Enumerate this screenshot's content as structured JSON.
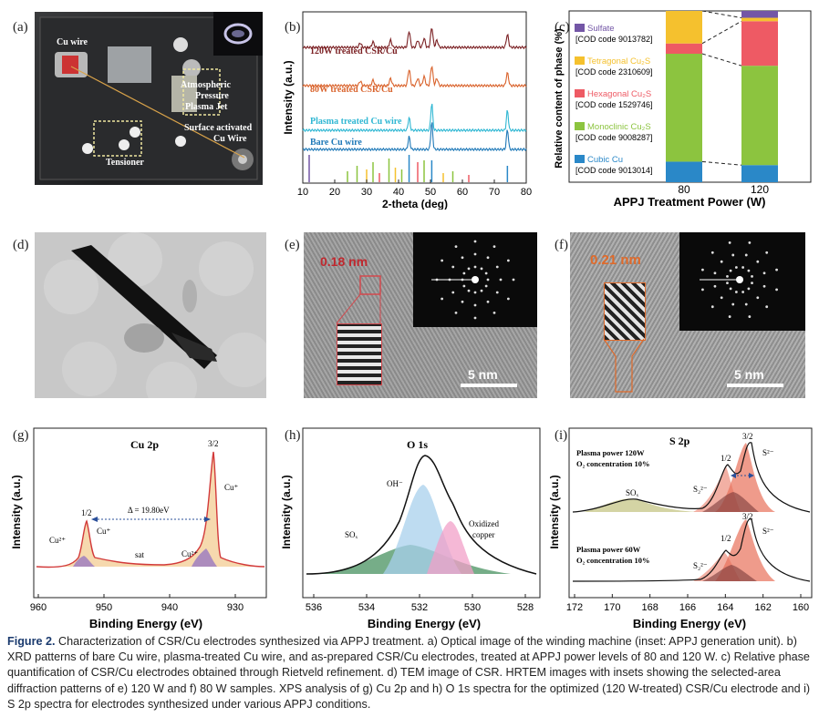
{
  "panels": {
    "a": {
      "label": "(a)",
      "annotations": [
        "Cu wire",
        "Atmospheric",
        "Pressure",
        "Plasma Jet",
        "Surface activated",
        "Cu Wire",
        "Tensioner"
      ]
    },
    "b": {
      "label": "(b)",
      "xlabel": "2-theta (deg)",
      "ylabel": "Intensity (a.u.)",
      "xticks": [
        "10",
        "20",
        "30",
        "40",
        "50",
        "60",
        "70",
        "80"
      ],
      "traces": [
        {
          "name": "120W treated CSR/Cu",
          "color": "#7a1f22"
        },
        {
          "name": "80W treated CSR/Cu",
          "color": "#d9622b"
        },
        {
          "name": "Plasma treated Cu wire",
          "color": "#2fb7d3"
        },
        {
          "name": "Bare Cu wire",
          "color": "#1f79b8"
        }
      ]
    },
    "c": {
      "label": "(c)",
      "xlabel": "APPJ Treatment Power (W)",
      "ylabel": "Relative content of phase (%)",
      "legend": [
        {
          "name": "Sulfate",
          "code": "[COD code 9013782]",
          "color": "#7356a6"
        },
        {
          "name": "Tetragonal Cu₂S",
          "code": "[COD code 2310609]",
          "color": "#f5c12e"
        },
        {
          "name": "Hexagonal Cu₂S",
          "code": "[COD code 1529746]",
          "color": "#ee5a64"
        },
        {
          "name": "Monoclinic Cu₂S",
          "code": "[COD code 9008287]",
          "color": "#8cc43f"
        },
        {
          "name": "Cubic Cu",
          "code": "[COD code 9013014]",
          "color": "#2a88c8"
        }
      ]
    },
    "d": {
      "label": "(d)"
    },
    "e": {
      "label": "(e)",
      "spacing": "0.18 nm",
      "scalebar": "5 nm"
    },
    "f": {
      "label": "(f)",
      "spacing": "0.21 nm",
      "scalebar": "5 nm"
    },
    "g": {
      "label": "(g)",
      "title": "Cu 2p",
      "xlabel": "Binding Energy (eV)",
      "ylabel": "Intensity (a.u.)",
      "xticks": [
        "960",
        "950",
        "940",
        "930"
      ],
      "annotations": {
        "p32": "3/2",
        "p12": "1/2",
        "cuplus_r": "Cu⁺",
        "cuplus_l": "Cu⁺",
        "cu2_l": "Cu²⁺",
        "cu2_r": "Cu²⁺",
        "sat": "sat",
        "delta": "Δ = 19.80eV"
      }
    },
    "h": {
      "label": "(h)",
      "title": "O 1s",
      "xlabel": "Binding Energy (eV)",
      "ylabel": "Intensity (a.u.)",
      "xticks": [
        "536",
        "534",
        "532",
        "530",
        "528"
      ],
      "annotations": {
        "oh": "OH⁻",
        "sox": "SOₓ",
        "oxcu1": "Oxidized",
        "oxcu2": "copper"
      }
    },
    "i": {
      "label": "(i)",
      "title": "S 2p",
      "xlabel": "Binding Energy (eV)",
      "ylabel": "Intensity (a.u.)",
      "xticks": [
        "172",
        "170",
        "168",
        "166",
        "164",
        "162",
        "160"
      ],
      "top_cond1": "Plasma power 120W",
      "top_cond2": "O₂ concentration 10%",
      "bot_cond1": "Plasma power 60W",
      "bot_cond2": "O₂ concentration 10%",
      "annotations": {
        "p32": "3/2",
        "p12": "1/2",
        "s2": "S²⁻",
        "s2b": "S²⁻",
        "sn": "S₂²⁻",
        "snb": "S₂²⁻",
        "sox": "SOₓ"
      }
    }
  },
  "caption": {
    "lead": "Figure 2.",
    "text": "Characterization of CSR/Cu electrodes synthesized via APPJ treatment. a) Optical image of the winding machine (inset: APPJ generation unit). b) XRD patterns of bare Cu wire, plasma-treated Cu wire, and as-prepared CSR/Cu electrodes, treated at APPJ power levels of 80 and 120 W. c) Relative phase quantification of CSR/Cu electrodes obtained through Rietveld refinement. d) TEM image of CSR. HRTEM images with insets showing the selected-area diffraction patterns of e) 120 W and f) 80 W samples. XPS analysis of g) Cu 2p and h) O 1s spectra for the optimized (120 W-treated) CSR/Cu electrode and i) S 2p spectra for electrodes synthesized under various APPJ conditions."
  },
  "chart_data": [
    {
      "type": "bar",
      "categories": [
        "80",
        "120"
      ],
      "xlabel": "APPJ Treatment Power (W)",
      "ylabel": "Relative content of phase (%)",
      "series": [
        {
          "name": "Cubic Cu",
          "values": [
            12,
            10
          ]
        },
        {
          "name": "Monoclinic Cu₂S",
          "values": [
            63,
            58
          ]
        },
        {
          "name": "Hexagonal Cu₂S",
          "values": [
            6,
            26
          ]
        },
        {
          "name": "Tetragonal Cu₂S",
          "values": [
            19,
            2
          ]
        },
        {
          "name": "Sulfate",
          "values": [
            0,
            4
          ]
        }
      ],
      "ylim": [
        0,
        100
      ]
    }
  ]
}
